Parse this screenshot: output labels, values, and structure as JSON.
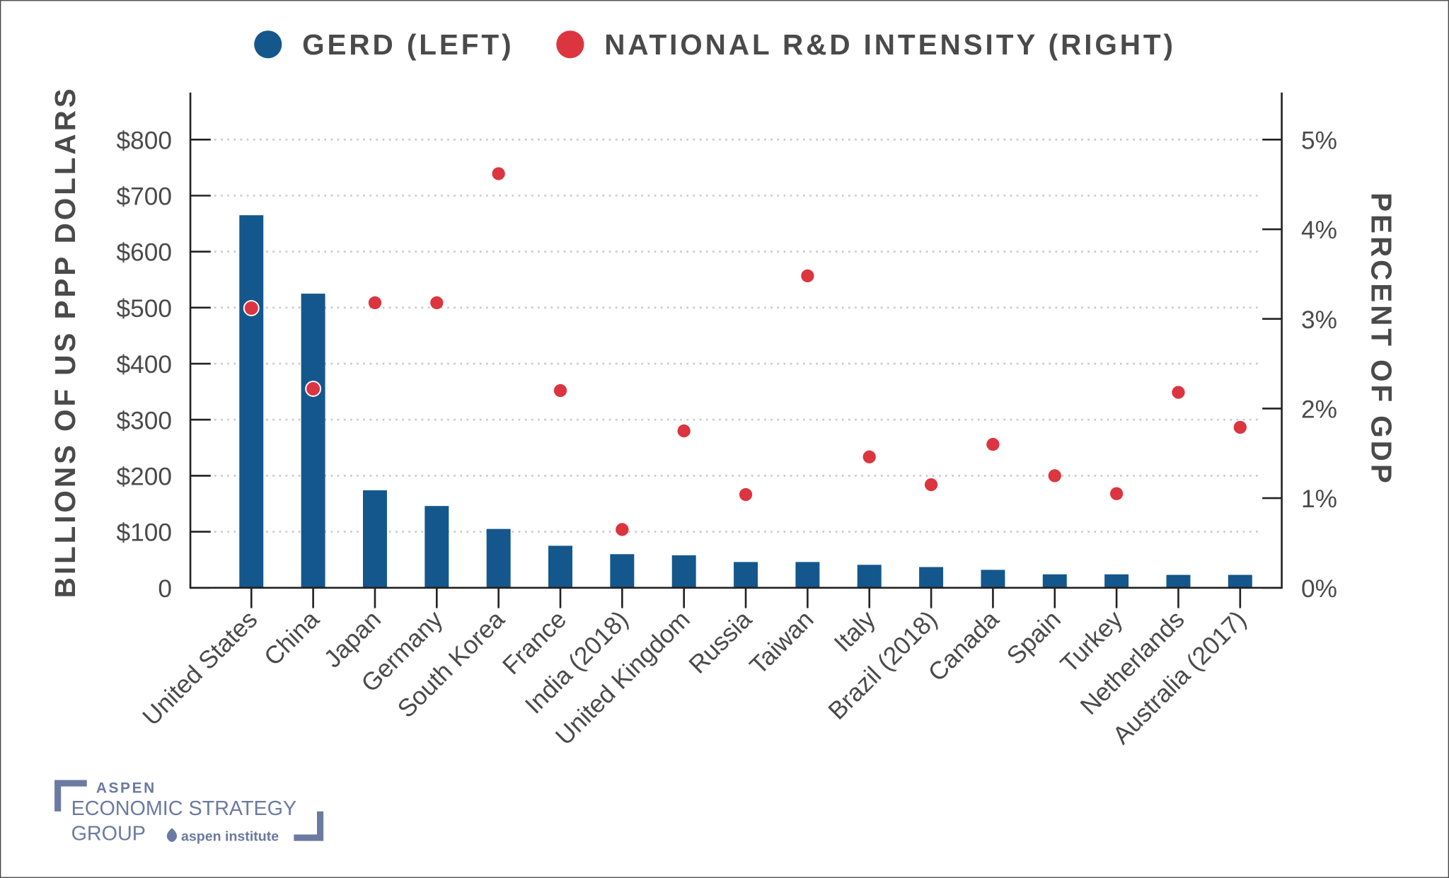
{
  "chart_data": {
    "type": "bar+scatter",
    "legend": {
      "placement": "top",
      "items": [
        {
          "label": "GERD (LEFT)",
          "color": "#14578c",
          "marker": "circle"
        },
        {
          "label": "NATIONAL R&D INTENSITY (RIGHT)",
          "color": "#dc3540",
          "marker": "circle"
        }
      ]
    },
    "ylabel_left": "BILLIONS OF US PPP DOLLARS",
    "ylabel_right": "PERCENT OF GDP",
    "ylim_left": [
      0,
      800
    ],
    "ylim_right": [
      0,
      5
    ],
    "left_ticks": [
      "0",
      "$100",
      "$200",
      "$300",
      "$400",
      "$500",
      "$600",
      "$700",
      "$800"
    ],
    "right_ticks": [
      "0%",
      "1%",
      "2%",
      "3%",
      "4%",
      "5%"
    ],
    "grid": true,
    "categories": [
      "United States",
      "China",
      "Japan",
      "Germany",
      "South Korea",
      "France",
      "India (2018)",
      "United Kingdom",
      "Russia",
      "Taiwan",
      "Italy",
      "Brazil (2018)",
      "Canada",
      "Spain",
      "Turkey",
      "Netherlands",
      "Australia (2017)"
    ],
    "series": [
      {
        "name": "GERD (LEFT)",
        "type": "bar",
        "axis": "left",
        "values": [
          665,
          525,
          174,
          146,
          105,
          75,
          60,
          58,
          46,
          46,
          41,
          37,
          32,
          24,
          24,
          23,
          23
        ]
      },
      {
        "name": "NATIONAL R&D INTENSITY (RIGHT)",
        "type": "scatter",
        "axis": "right",
        "values": [
          3.12,
          2.22,
          3.18,
          3.18,
          4.62,
          2.2,
          0.65,
          1.75,
          1.04,
          3.48,
          1.46,
          1.15,
          1.6,
          1.25,
          1.05,
          2.18,
          1.79
        ]
      }
    ]
  },
  "logo": {
    "line1": "ASPEN",
    "line2": "ECONOMIC STRATEGY",
    "line3": "GROUP",
    "sub": "aspen institute",
    "color": "#6b7aa1"
  }
}
